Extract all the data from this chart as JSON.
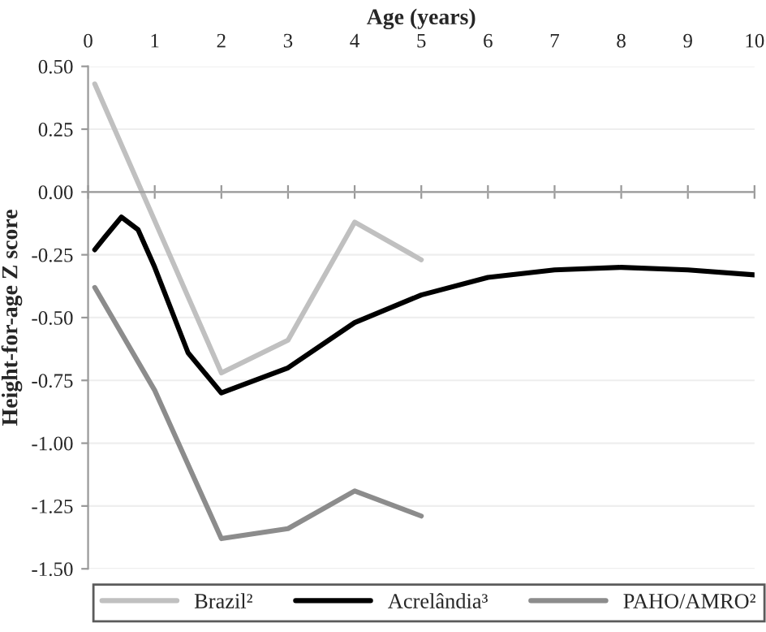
{
  "chart_data": {
    "type": "line",
    "xlabel": "Age (years)",
    "ylabel": "Height-for-age Z score",
    "xlim": [
      0,
      10
    ],
    "xticks": [
      0,
      1,
      2,
      3,
      4,
      5,
      6,
      7,
      8,
      9,
      10
    ],
    "ylim": [
      -1.5,
      0.5
    ],
    "yticks": [
      {
        "value": 0.5,
        "label": "0.50"
      },
      {
        "value": 0.25,
        "label": "0.25"
      },
      {
        "value": 0,
        "label": "0.00"
      },
      {
        "value": -0.25,
        "label": "-0.25"
      },
      {
        "value": -0.5,
        "label": "-0.50"
      },
      {
        "value": -0.75,
        "label": "-0.75"
      },
      {
        "value": -1,
        "label": "-1.00"
      },
      {
        "value": -1.25,
        "label": "-1.25"
      },
      {
        "value": -1.5,
        "label": "-1.50"
      }
    ],
    "grid": "y",
    "legend": "bottom",
    "marker": "none",
    "line_style": "solid",
    "series": [
      {
        "name": "Brazil²",
        "color": "#c0c0c0",
        "x": [
          0.1,
          2,
          3,
          4,
          5
        ],
        "values": [
          0.43,
          -0.72,
          -0.59,
          -0.12,
          -0.27
        ]
      },
      {
        "name": "Acrelândia³",
        "color": "#000000",
        "x": [
          0.1,
          0.25,
          0.5,
          0.75,
          1,
          1.5,
          2,
          3,
          4,
          5,
          6,
          7,
          8,
          9,
          10
        ],
        "values": [
          -0.23,
          -0.18,
          -0.1,
          -0.15,
          -0.3,
          -0.64,
          -0.8,
          -0.7,
          -0.52,
          -0.41,
          -0.34,
          -0.31,
          -0.3,
          -0.31,
          -0.33
        ]
      },
      {
        "name": "PAHO/AMRO²",
        "color": "#8c8c8c",
        "x": [
          0.1,
          1,
          2,
          3,
          4,
          5
        ],
        "values": [
          -0.38,
          -0.79,
          -1.38,
          -1.34,
          -1.19,
          -1.29
        ]
      }
    ]
  }
}
